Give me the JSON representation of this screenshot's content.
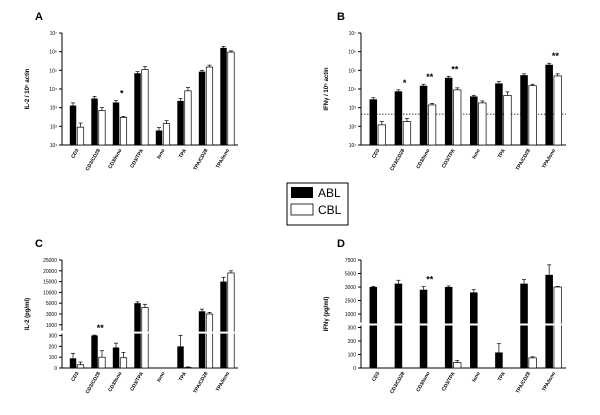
{
  "legend": {
    "items": [
      "ABL",
      "CBL"
    ]
  },
  "chart_data": [
    {
      "panel": "A",
      "type": "bar",
      "ylabel": "IL-2 / 10⁵ actin",
      "scale": "log",
      "ylim": [
        10,
        10000000
      ],
      "yticks": [
        10,
        100,
        1000,
        10000,
        100000,
        1000000,
        10000000
      ],
      "yticklabels": [
        "10¹",
        "10²",
        "10³",
        "10⁴",
        "10⁵",
        "10⁶",
        "10⁷"
      ],
      "categories": [
        "CD3",
        "CD3/CD28",
        "CD3/Iono",
        "CD3/TPA",
        "Iono",
        "TPA",
        "TPA/CD28",
        "TPA/Iono"
      ],
      "series": [
        {
          "name": "ABL",
          "values": [
            1300,
            3100,
            1900,
            70000,
            60,
            2300,
            85000,
            1600000
          ],
          "err": [
            500,
            900,
            500,
            15000,
            25,
            800,
            15000,
            300000
          ]
        },
        {
          "name": "CBL",
          "values": [
            90,
            700,
            300,
            110000,
            140,
            8000,
            150000,
            950000
          ],
          "err": [
            60,
            300,
            40,
            50000,
            60,
            4000,
            40000,
            150000
          ]
        }
      ],
      "significance": [
        {
          "category": "CD3/Iono",
          "label": "*"
        }
      ]
    },
    {
      "panel": "B",
      "type": "bar",
      "ylabel": "IFNγ / 10⁵ actin",
      "scale": "log",
      "ylim": [
        10,
        10000000
      ],
      "yticks": [
        10,
        100,
        1000,
        10000,
        100000,
        1000000,
        10000000
      ],
      "yticklabels": [
        "10¹",
        "10²",
        "10³",
        "10⁴",
        "10⁵",
        "10⁶",
        "10⁷"
      ],
      "reference_line": 450,
      "categories": [
        "CD3",
        "CD3/CD28",
        "CD3/Iono",
        "CD3/TPA",
        "Iono",
        "TPA",
        "TPA/CD28",
        "TPA/Iono"
      ],
      "series": [
        {
          "name": "ABL",
          "values": [
            2800,
            7500,
            15000,
            40000,
            4000,
            20000,
            55000,
            200000
          ],
          "err": [
            600,
            1500,
            3000,
            8000,
            600,
            5000,
            10000,
            40000
          ]
        },
        {
          "name": "CBL",
          "values": [
            120,
            180,
            1400,
            9000,
            1800,
            4500,
            15000,
            50000
          ],
          "err": [
            60,
            80,
            300,
            2500,
            500,
            2500,
            3000,
            15000
          ]
        }
      ],
      "significance": [
        {
          "category": "CD3/CD28",
          "label": "*"
        },
        {
          "category": "CD3/Iono",
          "label": "**"
        },
        {
          "category": "CD3/TPA",
          "label": "**"
        },
        {
          "category": "TPA/Iono",
          "label": "**"
        }
      ]
    },
    {
      "panel": "C",
      "type": "bar",
      "ylabel": "IL-2 (pg/ml)",
      "scale": "broken",
      "break_at": 300,
      "yticks": [
        0,
        100,
        200,
        300,
        1000,
        3000,
        5000,
        10000,
        15000,
        20000,
        25000
      ],
      "categories": [
        "CD3",
        "CD3/CD28",
        "CD3/Iono",
        "CD3/TPA",
        "Iono",
        "TPA",
        "TPA/CD28",
        "TPA/Iono"
      ],
      "series": [
        {
          "name": "ABL",
          "values": [
            90,
            300,
            190,
            5000,
            0,
            200,
            3500,
            15000
          ],
          "err": [
            45,
            30,
            40,
            600,
            0,
            120,
            400,
            2000
          ]
        },
        {
          "name": "CBL",
          "values": [
            30,
            100,
            95,
            4200,
            0,
            5,
            3000,
            19000
          ],
          "err": [
            25,
            60,
            50,
            600,
            0,
            5,
            300,
            1000
          ]
        }
      ],
      "significance": [
        {
          "category": "CD3/CD28",
          "label": "**"
        }
      ]
    },
    {
      "panel": "D",
      "type": "bar",
      "ylabel": "IFNγ (pg/ml)",
      "scale": "broken",
      "break_at": 300,
      "yticks": [
        0,
        100,
        200,
        300,
        1000,
        2500,
        3000,
        5000,
        7500
      ],
      "categories": [
        "CD3",
        "CD3/CD28",
        "CD3/Iono",
        "CD3/TPA",
        "Iono",
        "TPA",
        "TPA/CD28",
        "TPA/Iono"
      ],
      "series": [
        {
          "name": "ABL",
          "values": [
            3000,
            3500,
            2900,
            3000,
            2800,
            115,
            3500,
            4800
          ],
          "err": [
            100,
            500,
            150,
            150,
            100,
            65,
            600,
            1800
          ]
        },
        {
          "name": "CBL",
          "values": [
            0,
            0,
            0,
            40,
            0,
            0,
            75,
            3000
          ],
          "err": [
            0,
            0,
            0,
            15,
            0,
            0,
            8,
            80
          ]
        }
      ],
      "significance": [
        {
          "category": "CD3/Iono",
          "label": "**"
        }
      ]
    }
  ]
}
